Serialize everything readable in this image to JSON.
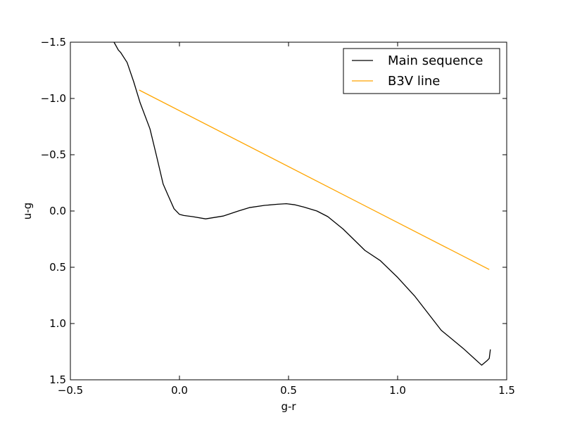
{
  "chart_data": {
    "type": "line",
    "title": "",
    "xlabel": "g-r",
    "ylabel": "u-g",
    "xlim": [
      -0.5,
      1.5
    ],
    "ylim": [
      1.5,
      -1.5
    ],
    "y_inverted": true,
    "grid": false,
    "legend_position": "top-right",
    "xticks": [
      -0.5,
      0.0,
      0.5,
      1.0,
      1.5
    ],
    "xtick_labels": [
      "−0.5",
      "0.0",
      "0.5",
      "1.0",
      "1.5"
    ],
    "yticks": [
      -1.5,
      -1.0,
      -0.5,
      0.0,
      0.5,
      1.0,
      1.5
    ],
    "ytick_labels": [
      "−1.5",
      "−1.0",
      "−0.5",
      "0.0",
      "0.5",
      "1.0",
      "1.5"
    ],
    "series": [
      {
        "name": "Main sequence",
        "color": "#000000",
        "x": [
          -0.3,
          -0.28,
          -0.27,
          -0.24,
          -0.21,
          -0.18,
          -0.135,
          -0.105,
          -0.075,
          -0.05,
          -0.025,
          0.0,
          0.02,
          0.06,
          0.12,
          0.2,
          0.27,
          0.32,
          0.39,
          0.45,
          0.49,
          0.53,
          0.57,
          0.63,
          0.68,
          0.75,
          0.85,
          0.92,
          1.0,
          1.08,
          1.2,
          1.3,
          1.385,
          1.41,
          1.42,
          1.425
        ],
        "y": [
          -1.5,
          -1.43,
          -1.41,
          -1.32,
          -1.15,
          -0.96,
          -0.73,
          -0.49,
          -0.24,
          -0.13,
          -0.02,
          0.03,
          0.04,
          0.05,
          0.07,
          0.045,
          0.0,
          -0.03,
          -0.05,
          -0.06,
          -0.065,
          -0.055,
          -0.035,
          0.0,
          0.05,
          0.16,
          0.35,
          0.44,
          0.59,
          0.76,
          1.06,
          1.22,
          1.37,
          1.33,
          1.31,
          1.23
        ]
      },
      {
        "name": "B3V line",
        "color": "#ffa500",
        "x": [
          -0.185,
          1.42
        ],
        "y": [
          -1.075,
          0.52
        ]
      }
    ]
  }
}
